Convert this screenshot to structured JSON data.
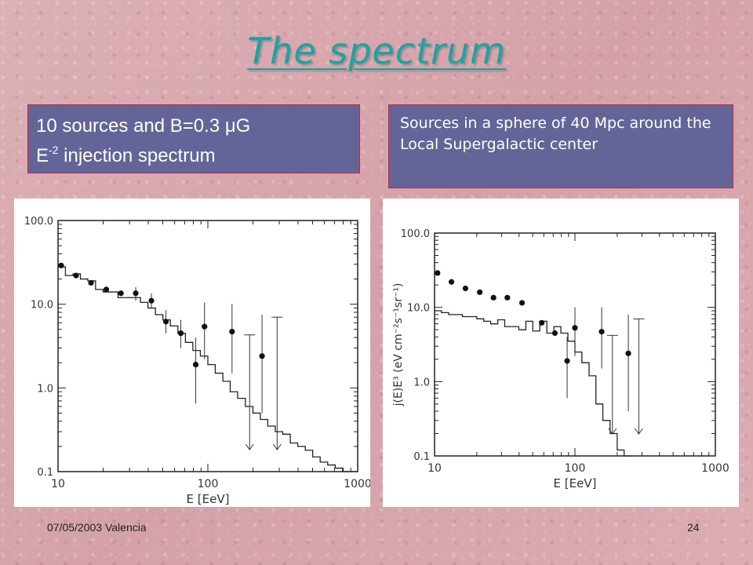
{
  "title": "The spectrum",
  "left_box": {
    "line1": "10 sources and B=0.3 μG",
    "line2_prefix": "E",
    "line2_sup": "-2",
    "line2_rest": " injection spectrum"
  },
  "right_box": {
    "text": "Sources in a sphere of 40 Mpc around the Local Supergalactic center"
  },
  "footer": {
    "date": "07/05/2003 Valencia",
    "page": "24"
  },
  "colors": {
    "title": "#19a5a5",
    "box": "#636598",
    "box_border": "#c0283a"
  },
  "chart_data": [
    {
      "type": "scatter",
      "x_scale": "log",
      "y_scale": "log",
      "xlim": [
        10,
        1000
      ],
      "ylim": [
        0.1,
        100
      ],
      "xticks": [
        "10",
        "100",
        "1000"
      ],
      "yticks": [
        "0.1",
        "1.0",
        "10.0",
        "100.0"
      ],
      "xlabel": "E [EeV]",
      "ylabel": "",
      "data_points": [
        {
          "x": 10.5,
          "y": 29
        },
        {
          "x": 13.2,
          "y": 22
        },
        {
          "x": 16.6,
          "y": 18
        },
        {
          "x": 21,
          "y": 15
        },
        {
          "x": 26.3,
          "y": 13.5
        },
        {
          "x": 33,
          "y": 13.5
        },
        {
          "x": 42,
          "y": 11
        },
        {
          "x": 52.5,
          "y": 6.2
        },
        {
          "x": 66,
          "y": 4.5
        },
        {
          "x": 83,
          "y": 1.9
        },
        {
          "x": 95,
          "y": 5.4
        },
        {
          "x": 145,
          "y": 4.7
        },
        {
          "x": 230,
          "y": 2.4
        }
      ],
      "error_bars": [
        {
          "x": 33,
          "lo": 11,
          "hi": 16
        },
        {
          "x": 42,
          "lo": 9,
          "hi": 13.5
        },
        {
          "x": 52.5,
          "lo": 4.5,
          "hi": 8.5
        },
        {
          "x": 66,
          "lo": 3,
          "hi": 6.5
        },
        {
          "x": 83,
          "lo": 0.65,
          "hi": 4
        },
        {
          "x": 95,
          "lo": 2.2,
          "hi": 10.5
        },
        {
          "x": 145,
          "lo": 1.5,
          "hi": 10
        },
        {
          "x": 230,
          "lo": 0.5,
          "hi": 7.5
        }
      ],
      "upper_limits": [
        {
          "x": 190,
          "y": 4.3
        },
        {
          "x": 290,
          "y": 7
        }
      ],
      "histogram": [
        {
          "x0": 10,
          "x1": 11.2,
          "y": 28
        },
        {
          "x0": 11.2,
          "x1": 12.6,
          "y": 22
        },
        {
          "x0": 12.6,
          "x1": 14.1,
          "y": 23
        },
        {
          "x0": 14.1,
          "x1": 15.8,
          "y": 20
        },
        {
          "x0": 15.8,
          "x1": 17.8,
          "y": 19
        },
        {
          "x0": 17.8,
          "x1": 20,
          "y": 15
        },
        {
          "x0": 20,
          "x1": 22.4,
          "y": 14
        },
        {
          "x0": 22.4,
          "x1": 25.1,
          "y": 14
        },
        {
          "x0": 25.1,
          "x1": 28.2,
          "y": 12
        },
        {
          "x0": 28.2,
          "x1": 31.6,
          "y": 12
        },
        {
          "x0": 31.6,
          "x1": 35.5,
          "y": 12
        },
        {
          "x0": 35.5,
          "x1": 39.8,
          "y": 10.5
        },
        {
          "x0": 39.8,
          "x1": 44.7,
          "y": 9
        },
        {
          "x0": 44.7,
          "x1": 50.1,
          "y": 7.5
        },
        {
          "x0": 50.1,
          "x1": 56.2,
          "y": 6.5
        },
        {
          "x0": 56.2,
          "x1": 63.1,
          "y": 5.5
        },
        {
          "x0": 63.1,
          "x1": 70.8,
          "y": 4.5
        },
        {
          "x0": 70.8,
          "x1": 79.4,
          "y": 3.5
        },
        {
          "x0": 79.4,
          "x1": 89.1,
          "y": 2.8
        },
        {
          "x0": 89.1,
          "x1": 100,
          "y": 2.4
        },
        {
          "x0": 100,
          "x1": 112,
          "y": 1.9
        },
        {
          "x0": 112,
          "x1": 126,
          "y": 1.5
        },
        {
          "x0": 126,
          "x1": 141,
          "y": 1.2
        },
        {
          "x0": 141,
          "x1": 158,
          "y": 0.9
        },
        {
          "x0": 158,
          "x1": 178,
          "y": 0.75
        },
        {
          "x0": 178,
          "x1": 200,
          "y": 0.6
        },
        {
          "x0": 200,
          "x1": 224,
          "y": 0.5
        },
        {
          "x0": 224,
          "x1": 251,
          "y": 0.42
        },
        {
          "x0": 251,
          "x1": 282,
          "y": 0.35
        },
        {
          "x0": 282,
          "x1": 316,
          "y": 0.3
        },
        {
          "x0": 316,
          "x1": 355,
          "y": 0.28
        },
        {
          "x0": 355,
          "x1": 398,
          "y": 0.22
        },
        {
          "x0": 398,
          "x1": 447,
          "y": 0.2
        },
        {
          "x0": 447,
          "x1": 501,
          "y": 0.18
        },
        {
          "x0": 501,
          "x1": 562,
          "y": 0.15
        },
        {
          "x0": 562,
          "x1": 631,
          "y": 0.13
        },
        {
          "x0": 631,
          "x1": 708,
          "y": 0.12
        },
        {
          "x0": 708,
          "x1": 794,
          "y": 0.11
        },
        {
          "x0": 794,
          "x1": 1000,
          "y": 0.1
        }
      ]
    },
    {
      "type": "scatter",
      "x_scale": "log",
      "y_scale": "log",
      "xlim": [
        10,
        1000
      ],
      "ylim": [
        0.1,
        100
      ],
      "xticks": [
        "10",
        "100",
        "1000"
      ],
      "yticks": [
        "0.1",
        "1.0",
        "10.0",
        "100.0"
      ],
      "xlabel": "E [EeV]",
      "ylabel": "j(E)E³ (eV cm⁻²s⁻¹sr⁻¹)",
      "data_points": [
        {
          "x": 10.5,
          "y": 29
        },
        {
          "x": 13.2,
          "y": 22
        },
        {
          "x": 16.6,
          "y": 18
        },
        {
          "x": 21,
          "y": 16
        },
        {
          "x": 26.3,
          "y": 13.5
        },
        {
          "x": 33,
          "y": 13.5
        },
        {
          "x": 42,
          "y": 11.5
        },
        {
          "x": 58,
          "y": 6.2
        },
        {
          "x": 72,
          "y": 4.5
        },
        {
          "x": 88,
          "y": 1.9
        },
        {
          "x": 100,
          "y": 5.3
        },
        {
          "x": 155,
          "y": 4.7
        },
        {
          "x": 240,
          "y": 2.4
        }
      ],
      "error_bars": [
        {
          "x": 88,
          "lo": 0.6,
          "hi": 4
        },
        {
          "x": 100,
          "lo": 2.2,
          "hi": 10
        },
        {
          "x": 155,
          "lo": 1.5,
          "hi": 10
        },
        {
          "x": 240,
          "lo": 0.4,
          "hi": 8
        }
      ],
      "upper_limits": [
        {
          "x": 185,
          "y": 4.2
        },
        {
          "x": 285,
          "y": 7
        }
      ],
      "histogram": [
        {
          "x0": 10,
          "x1": 11.2,
          "y": 9
        },
        {
          "x0": 11.2,
          "x1": 12.6,
          "y": 8.5
        },
        {
          "x0": 12.6,
          "x1": 14.1,
          "y": 8
        },
        {
          "x0": 14.1,
          "x1": 15.8,
          "y": 8
        },
        {
          "x0": 15.8,
          "x1": 17.8,
          "y": 7.5
        },
        {
          "x0": 17.8,
          "x1": 20,
          "y": 7.5
        },
        {
          "x0": 20,
          "x1": 22.4,
          "y": 7
        },
        {
          "x0": 22.4,
          "x1": 25.1,
          "y": 6.5
        },
        {
          "x0": 25.1,
          "x1": 28.2,
          "y": 6
        },
        {
          "x0": 28.2,
          "x1": 31.6,
          "y": 6.8
        },
        {
          "x0": 31.6,
          "x1": 35.5,
          "y": 5.5
        },
        {
          "x0": 35.5,
          "x1": 39.8,
          "y": 5.5
        },
        {
          "x0": 39.8,
          "x1": 44.7,
          "y": 5
        },
        {
          "x0": 44.7,
          "x1": 50.1,
          "y": 6.5
        },
        {
          "x0": 50.1,
          "x1": 56.2,
          "y": 4.8
        },
        {
          "x0": 56.2,
          "x1": 63.1,
          "y": 6.5
        },
        {
          "x0": 63.1,
          "x1": 70.8,
          "y": 4.5
        },
        {
          "x0": 70.8,
          "x1": 79.4,
          "y": 5.5
        },
        {
          "x0": 79.4,
          "x1": 89.1,
          "y": 4.5
        },
        {
          "x0": 89.1,
          "x1": 100,
          "y": 3.5
        },
        {
          "x0": 100,
          "x1": 112,
          "y": 2.5
        },
        {
          "x0": 112,
          "x1": 126,
          "y": 1.8
        },
        {
          "x0": 126,
          "x1": 141,
          "y": 1.2
        },
        {
          "x0": 141,
          "x1": 158,
          "y": 0.5
        },
        {
          "x0": 158,
          "x1": 178,
          "y": 0.3
        },
        {
          "x0": 178,
          "x1": 200,
          "y": 0.2
        },
        {
          "x0": 200,
          "x1": 224,
          "y": 0.12
        },
        {
          "x0": 224,
          "x1": 251,
          "y": 0.1
        }
      ]
    }
  ]
}
